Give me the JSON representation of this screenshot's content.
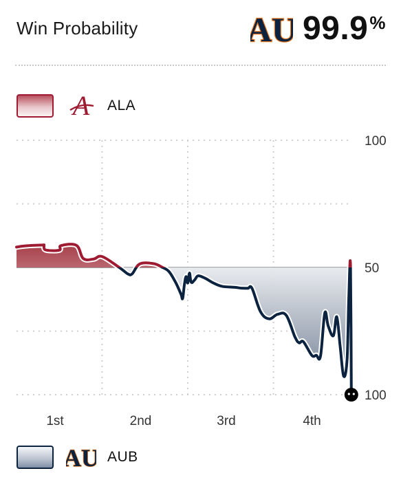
{
  "header": {
    "title": "Win Probability",
    "winner_pct": "99.9",
    "pct_sign": "%"
  },
  "legend": {
    "home": {
      "label": "ALA"
    },
    "away": {
      "label": "AUB"
    }
  },
  "colors": {
    "alabama": "#9e1b32",
    "auburn": "#0c2340",
    "auburn_orange": "#e87722",
    "midline": "#888888",
    "grid": "#cfcfcf"
  },
  "chart_data": {
    "type": "area",
    "title": "Win Probability",
    "x": [
      0.0,
      0.1,
      0.3,
      0.32,
      0.34,
      0.5,
      0.52,
      0.7,
      0.78,
      0.9,
      1.0,
      1.2,
      1.3,
      1.35,
      1.44,
      1.6,
      1.7,
      1.78,
      1.86,
      1.92,
      1.94,
      1.96,
      1.98,
      2.0,
      2.02,
      2.04,
      2.08,
      2.12,
      2.2,
      2.3,
      2.4,
      2.55,
      2.62,
      2.7,
      2.75,
      2.85,
      2.95,
      3.05,
      3.15,
      3.25,
      3.3,
      3.35,
      3.45,
      3.5,
      3.55,
      3.6,
      3.64,
      3.7,
      3.74,
      3.78,
      3.82,
      3.86,
      3.88,
      3.9,
      3.91
    ],
    "y": [
      58,
      58.5,
      58.8,
      58.7,
      56.9,
      56.8,
      58.6,
      58.7,
      53.5,
      53.3,
      54.3,
      50.0,
      47.5,
      47.5,
      51.4,
      51.5,
      50.1,
      48.4,
      44.0,
      39.6,
      37.8,
      43.1,
      46.4,
      43.9,
      47.8,
      44.2,
      45.1,
      46.7,
      45.8,
      43.9,
      42.6,
      42.2,
      41.9,
      41.8,
      41.8,
      32.6,
      29.8,
      31.6,
      31.2,
      22.8,
      20.4,
      20.8,
      15.4,
      15.5,
      15.2,
      32.1,
      27.0,
      23.2,
      30.6,
      18.9,
      7.3,
      13.8,
      37.9,
      50.8,
      0.1
    ],
    "x_labels": [
      "1st",
      "2nd",
      "3rd",
      "4th"
    ],
    "y_labels_top": [
      "100",
      "50"
    ],
    "y_labels_bottom": [
      "100"
    ],
    "series": [
      {
        "name": "ALA",
        "color": "#9e1b32"
      },
      {
        "name": "AUB",
        "color": "#0c2340"
      }
    ]
  }
}
